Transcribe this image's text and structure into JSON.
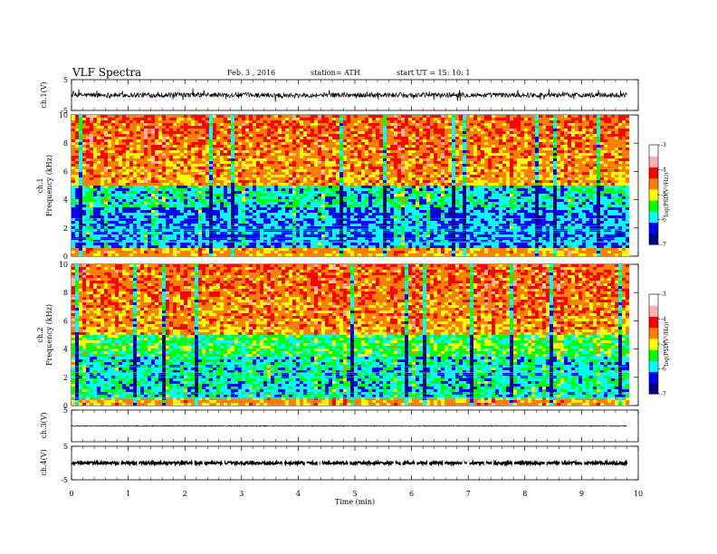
{
  "header": {
    "title": "VLF Spectra",
    "date": "Feb. 3 , 2016",
    "station": "station= ATH",
    "start_ut": "start UT = 15: 10: 1"
  },
  "chart_data": [
    {
      "type": "line",
      "panel": "ch1-waveform",
      "ylabel": "ch.1(V)",
      "ylim": [
        -5,
        5
      ],
      "y_ticks": [
        "5",
        "-5"
      ],
      "xlim": [
        0,
        10
      ],
      "data_end_min": 9.8,
      "baseline": 0,
      "noise_amplitude": 0.8,
      "color": "#000000"
    },
    {
      "type": "heatmap",
      "panel": "ch1-spectrogram",
      "ylabel": "Frequency (kHz)",
      "channel_label": "ch.1",
      "ylim": [
        0,
        10
      ],
      "y_ticks": [
        "0",
        "2",
        "4",
        "6",
        "8",
        "10"
      ],
      "xlim": [
        0,
        10
      ],
      "data_end_min": 9.8,
      "colorbar": {
        "label": "log(PSD(V²/Hz))",
        "range": [
          -7,
          -3
        ],
        "ticks": [
          "-3",
          "-4",
          "-5",
          "-6",
          "-7"
        ],
        "colors": [
          "#000080",
          "#0000ff",
          "#00ffff",
          "#00ff00",
          "#ffff00",
          "#ff8000",
          "#ff0000",
          "#ffb0b0",
          "#ffffff"
        ]
      }
    },
    {
      "type": "heatmap",
      "panel": "ch2-spectrogram",
      "ylabel": "Frequency (kHz)",
      "channel_label": "ch.2",
      "ylim": [
        0,
        10
      ],
      "y_ticks": [
        "0",
        "2",
        "4",
        "6",
        "8",
        "10"
      ],
      "xlim": [
        0,
        10
      ],
      "data_end_min": 9.8,
      "colorbar": {
        "label": "log(PSD(V²/Hz))",
        "range": [
          -7,
          -3
        ],
        "ticks": [
          "-3",
          "-4",
          "-5",
          "-6",
          "-7"
        ],
        "colors": [
          "#000080",
          "#0000ff",
          "#00ffff",
          "#00ff00",
          "#ffff00",
          "#ff8000",
          "#ff0000",
          "#ffb0b0",
          "#ffffff"
        ]
      }
    },
    {
      "type": "line",
      "panel": "ch3-waveform",
      "ylabel": "ch.3(V)",
      "ylim": [
        -5,
        5
      ],
      "y_ticks": [
        "5"
      ],
      "xlim": [
        0,
        10
      ],
      "data_end_min": 9.8,
      "baseline": 0,
      "noise_amplitude": 0.15,
      "color": "#000000"
    },
    {
      "type": "line",
      "panel": "ch4-waveform",
      "ylabel": "ch.4(V)",
      "ylim": [
        -5,
        5
      ],
      "y_ticks": [
        "5",
        "-5"
      ],
      "xlim": [
        0,
        10
      ],
      "data_end_min": 9.8,
      "baseline": 0,
      "noise_amplitude": 0.4,
      "color": "#000000"
    }
  ],
  "xaxis": {
    "label": "Time (min)",
    "ticks": [
      "0",
      "1",
      "2",
      "3",
      "4",
      "5",
      "6",
      "7",
      "8",
      "9",
      "10"
    ]
  }
}
